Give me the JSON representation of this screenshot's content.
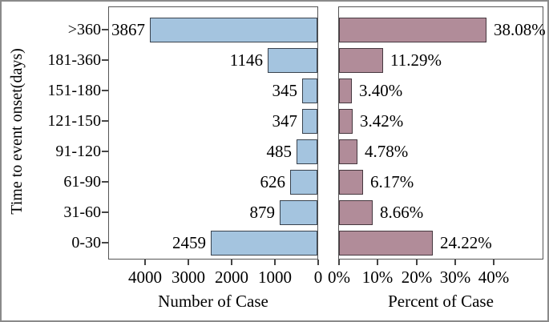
{
  "figure": {
    "y_axis_title": "Time to event onset(days)",
    "colors": {
      "count_fill": "#a4c4df",
      "count_border": "#3a434e",
      "percent_fill": "#b18c99",
      "percent_border": "#46383f",
      "panel_border": "#555555",
      "outer_border": "#8a8a8a",
      "tick_color": "#444444",
      "text": "#000000"
    }
  },
  "chart_data": [
    {
      "type": "bar",
      "orientation": "horizontal",
      "panel": "left",
      "title": "",
      "xlabel": "Number of Case",
      "ylabel": "Time to event onset(days)",
      "categories": [
        ">360",
        "181-360",
        "151-180",
        "121-150",
        "91-120",
        "61-90",
        "31-60",
        "0-30"
      ],
      "values": [
        3867,
        1146,
        345,
        347,
        485,
        626,
        879,
        2459
      ],
      "value_labels": [
        "3867",
        "1146",
        "345",
        "347",
        "485",
        "626",
        "879",
        "2459"
      ],
      "x_tick_values": [
        4000,
        3000,
        2000,
        1000,
        0
      ],
      "x_tick_labels": [
        "4000",
        "3000",
        "2000",
        "1000",
        "0"
      ],
      "xlim": [
        0,
        4850
      ],
      "axis_reversed": true,
      "grid": false,
      "legend": "none"
    },
    {
      "type": "bar",
      "orientation": "horizontal",
      "panel": "right",
      "title": "",
      "xlabel": "Percent of Case",
      "ylabel": "Time to event onset(days)",
      "categories": [
        ">360",
        "181-360",
        "151-180",
        "121-150",
        "91-120",
        "61-90",
        "31-60",
        "0-30"
      ],
      "values": [
        38.08,
        11.29,
        3.4,
        3.42,
        4.78,
        6.17,
        8.66,
        24.22
      ],
      "value_labels": [
        "38.08%",
        "11.29%",
        "3.40%",
        "3.42%",
        "4.78%",
        "6.17%",
        "8.66%",
        "24.22%"
      ],
      "x_tick_values": [
        0,
        10,
        20,
        30,
        40
      ],
      "x_tick_labels": [
        "0%",
        "10%",
        "20%",
        "30%",
        "40%"
      ],
      "xlim": [
        0,
        53
      ],
      "axis_reversed": false,
      "grid": false,
      "legend": "none"
    }
  ]
}
